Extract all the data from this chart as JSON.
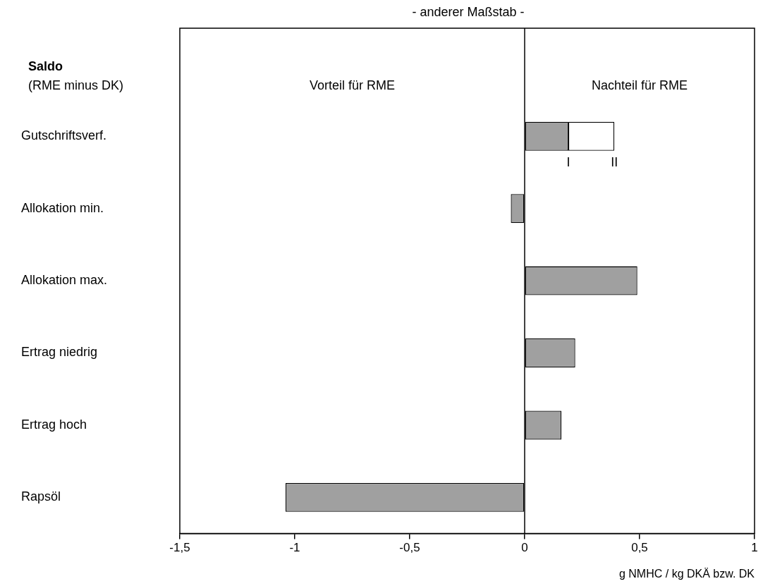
{
  "chart_data": {
    "type": "bar",
    "orientation": "horizontal",
    "stacked": true,
    "title": "Saldo",
    "subtitle": "(RME minus DK)",
    "xlabel": "g NMHC / kg DKÄ bzw. DK",
    "categories": [
      "Gutschriftsverf.",
      "Allokation min.",
      "Allokation max.",
      "Ertrag niedrig",
      "Ertrag hoch",
      "Rapsöl"
    ],
    "series": [
      {
        "color": "#a0a0a0",
        "values": [
          0.19,
          -0.06,
          0.49,
          0.22,
          0.16,
          -1.04
        ]
      },
      {
        "color": "#ffffff",
        "values": [
          0.2,
          null,
          null,
          null,
          null,
          null
        ]
      }
    ],
    "xlim": [
      -1.5,
      1
    ],
    "xticks": [
      {
        "value": -1.5,
        "label": "-1,5"
      },
      {
        "value": -1,
        "label": "-1"
      },
      {
        "value": -0.5,
        "label": "-0,5"
      },
      {
        "value": 0,
        "label": "0"
      },
      {
        "value": 0.5,
        "label": "0,5"
      },
      {
        "value": 1,
        "label": "1"
      }
    ],
    "ref_lines": [
      {
        "axis": "x",
        "value": 0
      }
    ],
    "annotations": [
      "- anderer Maßstab -",
      "Vorteil für RME",
      "Nachteil für RME",
      {
        "text": "I",
        "x": 0.19,
        "y": "Gutschriftsverf."
      },
      {
        "text": "II",
        "x": 0.39,
        "y": "Gutschriftsverf."
      }
    ],
    "grid": false,
    "legend": false
  }
}
